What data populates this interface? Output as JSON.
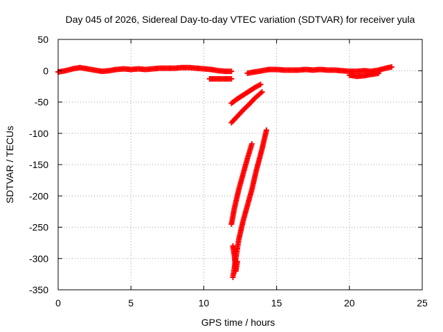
{
  "chart_data": {
    "type": "scatter",
    "title": "Day 045 of 2026, Sidereal Day-to-day VTEC variation (SDTVAR) for receiver yula",
    "xlabel": "GPS time / hours",
    "ylabel": "SDTVAR / TECUs",
    "xlim": [
      0,
      25
    ],
    "ylim": [
      -350,
      50
    ],
    "xticks": [
      0,
      5,
      10,
      15,
      20,
      25
    ],
    "yticks": [
      50,
      0,
      -50,
      -100,
      -150,
      -200,
      -250,
      -300,
      -350
    ],
    "grid": true,
    "marker": "plus",
    "color": "#ff0000",
    "series": [
      {
        "x": [
          0.0,
          0.5,
          1.0,
          1.5,
          2.0,
          2.5,
          3.0,
          3.5,
          4.0,
          4.5,
          5.0,
          5.5,
          6.0,
          6.5,
          7.0,
          7.5,
          8.0,
          8.5,
          9.0,
          9.5,
          10.0,
          10.5,
          11.0,
          11.5,
          11.9
        ],
        "y": [
          -2,
          0,
          3,
          5,
          3,
          1,
          -1,
          0,
          2,
          3,
          2,
          3,
          2,
          3,
          4,
          4,
          4,
          5,
          5,
          4,
          3,
          2,
          0,
          -1,
          -1
        ]
      },
      {
        "x": [
          10.4,
          10.7,
          11.0,
          11.3,
          11.6,
          11.9
        ],
        "y": [
          -13,
          -13,
          -13,
          -13,
          -13,
          -13
        ]
      },
      {
        "x": [
          13.0,
          13.5,
          14.0,
          14.5,
          15.0,
          15.5,
          16.0,
          16.5,
          17.0,
          17.5,
          18.0,
          18.5,
          19.0,
          19.5,
          20.0,
          20.5,
          21.0,
          21.5,
          22.0,
          22.5,
          22.9
        ],
        "y": [
          -4,
          -2,
          0,
          2,
          2,
          1,
          1,
          1,
          2,
          1,
          2,
          1,
          1,
          0,
          -1,
          -1,
          0,
          -1,
          1,
          4,
          6
        ]
      },
      {
        "x": [
          20.0,
          20.5,
          21.0,
          21.5,
          22.0
        ],
        "y": [
          -7,
          -9,
          -8,
          -6,
          -4
        ]
      },
      {
        "x": [
          11.9,
          12.3,
          12.7,
          13.1,
          13.5,
          13.9
        ],
        "y": [
          -52,
          -45,
          -39,
          -33,
          -27,
          -22
        ]
      },
      {
        "x": [
          11.9,
          12.3,
          12.7,
          13.1,
          13.5,
          14.0
        ],
        "y": [
          -83,
          -73,
          -63,
          -54,
          -44,
          -34
        ]
      },
      {
        "x": [
          11.9,
          12.1,
          12.4,
          12.7,
          13.0,
          13.3
        ],
        "y": [
          -245,
          -220,
          -190,
          -165,
          -140,
          -117
        ]
      },
      {
        "x": [
          12.0,
          12.2,
          12.4,
          12.7,
          13.0,
          13.3,
          13.6,
          14.0,
          14.3
        ],
        "y": [
          -330,
          -300,
          -270,
          -240,
          -215,
          -190,
          -160,
          -125,
          -95
        ]
      },
      {
        "x": [
          12.0,
          12.1,
          12.2,
          12.3
        ],
        "y": [
          -280,
          -295,
          -320,
          -305
        ]
      }
    ]
  }
}
